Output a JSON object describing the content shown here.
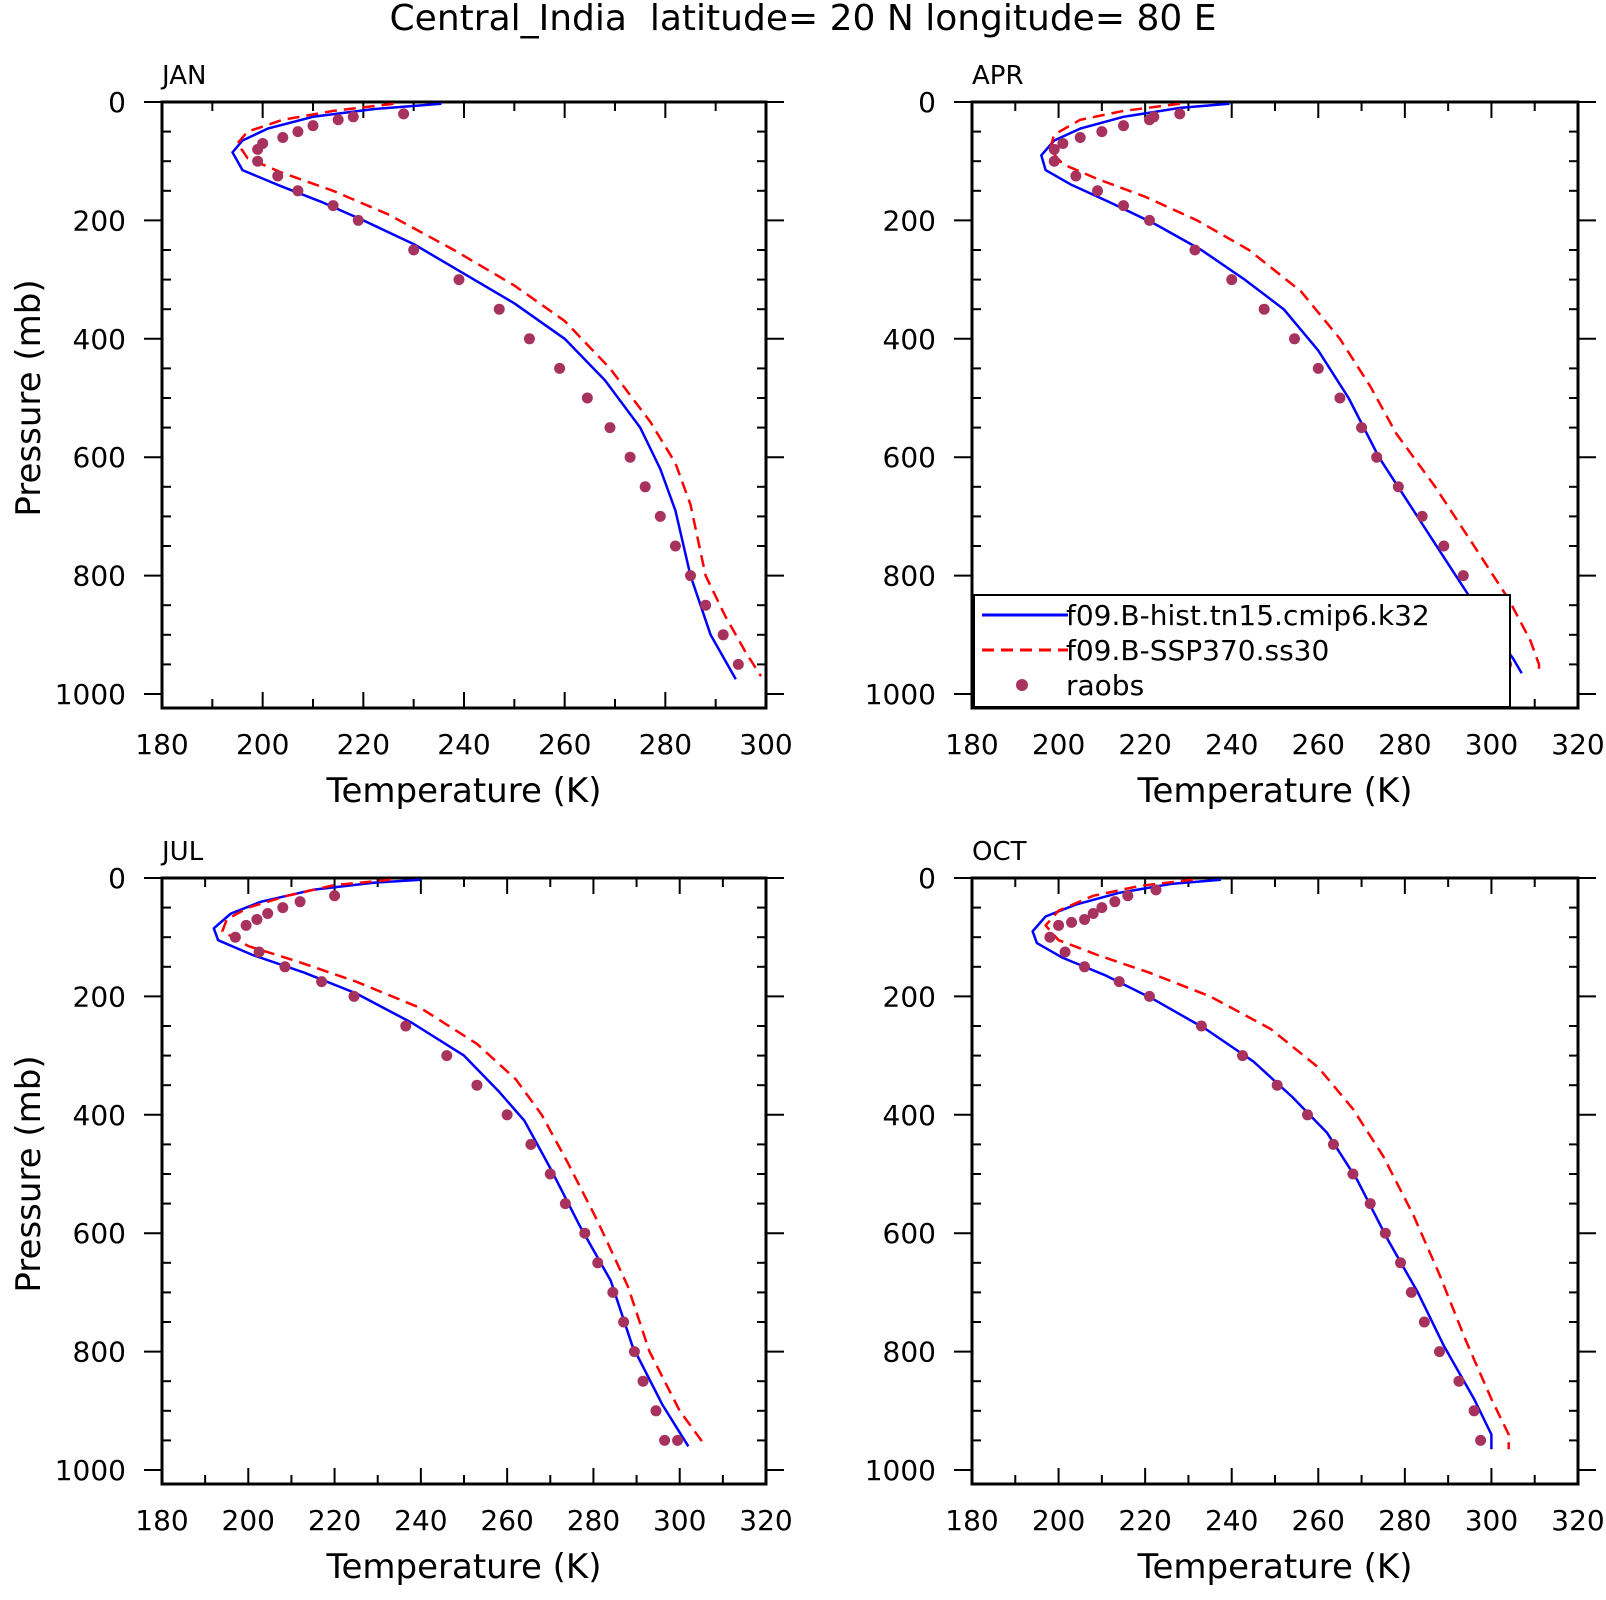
{
  "title": "Central_India  latitude= 20 N longitude= 80 E",
  "legend": {
    "entries": [
      {
        "label": "f09.B-hist.tn15.cmip6.k32",
        "color": "#0000ff",
        "style": "solid"
      },
      {
        "label": "f09.B-SSP370.ss30",
        "color": "#ff0000",
        "style": "dashed"
      },
      {
        "label": "raobs",
        "color": "#a8325e",
        "style": "dot"
      }
    ]
  },
  "chart_data": [
    {
      "type": "line",
      "title": "JAN",
      "xlabel": "Temperature (K)",
      "ylabel": "Pressure (mb)",
      "xlim": [
        180,
        300
      ],
      "ylim": [
        1000,
        0
      ],
      "xticks": [
        "180",
        "200",
        "220",
        "240",
        "260",
        "280",
        "300"
      ],
      "yticks": [
        "0",
        "200",
        "400",
        "600",
        "800",
        "1000"
      ],
      "series": [
        {
          "name": "f09.B-hist.tn15.cmip6.k32",
          "x": [
            235.5,
            222,
            210,
            201,
            196,
            194,
            196,
            203,
            212,
            220,
            230,
            240,
            250,
            260,
            268,
            275,
            279,
            282,
            285,
            289,
            294
          ],
          "y": [
            3,
            12,
            25,
            45,
            65,
            85,
            115,
            140,
            170,
            200,
            240,
            290,
            340,
            400,
            470,
            550,
            620,
            690,
            800,
            900,
            975
          ]
        },
        {
          "name": "f09.B-SSP370.ss30",
          "x": [
            226,
            214,
            204,
            197,
            195,
            197,
            204,
            214,
            225,
            238,
            250,
            260,
            269,
            277,
            282,
            285,
            288,
            292,
            296,
            299
          ],
          "y": [
            3,
            15,
            30,
            50,
            70,
            95,
            120,
            150,
            190,
            250,
            310,
            370,
            450,
            540,
            610,
            680,
            800,
            870,
            930,
            970
          ]
        }
      ],
      "raobs": {
        "name": "raobs",
        "x": [
          228,
          218,
          215,
          210,
          207,
          204,
          200,
          199,
          199,
          203,
          207,
          214,
          219,
          230,
          239,
          247,
          253,
          259,
          264.5,
          269,
          273,
          276,
          279,
          282,
          285,
          288,
          291.5,
          294.5
        ],
        "y": [
          20,
          25,
          30,
          40,
          50,
          60,
          70,
          80,
          100,
          125,
          150,
          175,
          200,
          250,
          300,
          350,
          400,
          450,
          500,
          550,
          600,
          650,
          700,
          750,
          800,
          850,
          900,
          950
        ]
      }
    },
    {
      "type": "line",
      "title": "APR",
      "xlabel": "Temperature (K)",
      "ylabel": "",
      "xlim": [
        180,
        320
      ],
      "ylim": [
        1000,
        0
      ],
      "xticks": [
        "180",
        "200",
        "220",
        "240",
        "260",
        "280",
        "300",
        "320"
      ],
      "yticks": [
        "0",
        "200",
        "400",
        "600",
        "800",
        "1000"
      ],
      "series": [
        {
          "name": "f09.B-hist.tn15.cmip6.k32",
          "x": [
            239.5,
            228,
            215,
            205,
            199,
            196,
            197,
            203,
            212,
            222,
            233,
            243,
            252,
            260,
            267,
            274,
            282,
            290,
            298,
            305,
            307
          ],
          "y": [
            3,
            10,
            25,
            45,
            65,
            90,
            115,
            140,
            170,
            205,
            250,
            300,
            350,
            420,
            500,
            600,
            690,
            780,
            870,
            940,
            965
          ]
        },
        {
          "name": "f09.B-SSP370.ss30",
          "x": [
            228,
            215,
            205,
            199,
            198,
            201,
            209,
            220,
            232,
            244,
            256,
            265,
            272,
            278,
            287,
            296,
            304,
            309,
            311,
            311
          ],
          "y": [
            3,
            15,
            30,
            55,
            80,
            105,
            130,
            160,
            200,
            250,
            320,
            400,
            480,
            560,
            650,
            750,
            840,
            910,
            950,
            965
          ]
        }
      ],
      "raobs": {
        "name": "raobs",
        "x": [
          228,
          222,
          221,
          215,
          210,
          205,
          201,
          199,
          199,
          204,
          209,
          215,
          221,
          231.5,
          240,
          247.5,
          254.5,
          260,
          265,
          270,
          273.5,
          278.5,
          284,
          289,
          293.5,
          298.5,
          302.5,
          303.5
        ],
        "y": [
          20,
          25,
          30,
          40,
          50,
          60,
          70,
          80,
          100,
          125,
          150,
          175,
          200,
          250,
          300,
          350,
          400,
          450,
          500,
          550,
          600,
          650,
          700,
          750,
          800,
          850,
          900,
          950
        ]
      }
    },
    {
      "type": "line",
      "title": "JUL",
      "xlabel": "Temperature (K)",
      "ylabel": "Pressure (mb)",
      "xlim": [
        180,
        320
      ],
      "ylim": [
        1000,
        0
      ],
      "xticks": [
        "180",
        "200",
        "220",
        "240",
        "260",
        "280",
        "300",
        "320"
      ],
      "yticks": [
        "0",
        "200",
        "400",
        "600",
        "800",
        "1000"
      ],
      "series": [
        {
          "name": "f09.B-hist.tn15.cmip6.k32",
          "x": [
            240,
            229,
            215,
            203,
            196,
            192,
            193,
            201,
            213,
            225,
            238,
            250,
            258,
            264,
            270,
            277,
            284,
            289,
            296,
            302
          ],
          "y": [
            3,
            8,
            20,
            40,
            60,
            85,
            105,
            130,
            160,
            195,
            245,
            300,
            360,
            410,
            490,
            590,
            680,
            790,
            890,
            960
          ]
        },
        {
          "name": "f09.B-SSP370.ss30",
          "x": [
            233,
            220,
            209,
            200,
            195,
            194,
            200,
            211,
            225,
            240,
            253,
            262,
            268,
            274,
            281,
            288,
            293,
            300,
            306
          ],
          "y": [
            3,
            12,
            30,
            50,
            70,
            90,
            115,
            140,
            175,
            220,
            280,
            340,
            400,
            480,
            580,
            690,
            800,
            900,
            960
          ]
        }
      ],
      "raobs": {
        "name": "raobs",
        "x": [
          220,
          212,
          208,
          204.5,
          202,
          199.5,
          197,
          202.5,
          208.5,
          217,
          224.5,
          236.5,
          246,
          253,
          260,
          265.5,
          270,
          273.5,
          278,
          281,
          284.5,
          287,
          289.5,
          291.5,
          294.5,
          296.5,
          299.5
        ],
        "y": [
          30,
          40,
          50,
          60,
          70,
          80,
          100,
          125,
          150,
          175,
          200,
          250,
          300,
          350,
          400,
          450,
          500,
          550,
          600,
          650,
          700,
          750,
          800,
          850,
          900,
          950,
          950
        ]
      }
    },
    {
      "type": "line",
      "title": "OCT",
      "xlabel": "Temperature (K)",
      "ylabel": "",
      "xlim": [
        180,
        320
      ],
      "ylim": [
        1000,
        0
      ],
      "xticks": [
        "180",
        "200",
        "220",
        "240",
        "260",
        "280",
        "300",
        "320"
      ],
      "yticks": [
        "0",
        "200",
        "400",
        "600",
        "800",
        "1000"
      ],
      "series": [
        {
          "name": "f09.B-hist.tn15.cmip6.k32",
          "x": [
            237.5,
            226,
            214,
            204,
            197,
            194,
            195,
            201,
            211,
            222,
            234,
            245,
            254,
            262,
            269,
            276,
            283,
            289,
            296,
            300,
            300
          ],
          "y": [
            3,
            10,
            25,
            45,
            65,
            90,
            110,
            135,
            165,
            205,
            255,
            310,
            370,
            430,
            510,
            610,
            700,
            790,
            880,
            940,
            965
          ]
        },
        {
          "name": "f09.B-SSP370.ss30",
          "x": [
            231,
            219,
            208,
            200,
            197,
            200,
            209,
            221,
            235,
            249,
            260,
            268,
            275,
            282,
            288,
            294,
            300,
            304,
            304
          ],
          "y": [
            3,
            13,
            30,
            55,
            80,
            105,
            130,
            160,
            200,
            255,
            320,
            390,
            470,
            570,
            670,
            780,
            880,
            940,
            965
          ]
        }
      ],
      "raobs": {
        "name": "raobs",
        "x": [
          222.5,
          216,
          213,
          210,
          208,
          206,
          203,
          200,
          198,
          201.5,
          206,
          214,
          221,
          233,
          242.5,
          250.5,
          257.5,
          263.5,
          268,
          272,
          275.5,
          279,
          281.5,
          284.5,
          288,
          292.5,
          296,
          297.5
        ],
        "y": [
          20,
          30,
          40,
          50,
          60,
          70,
          75,
          80,
          100,
          125,
          150,
          175,
          200,
          250,
          300,
          350,
          400,
          450,
          500,
          550,
          600,
          650,
          700,
          750,
          800,
          850,
          900,
          950
        ]
      }
    }
  ]
}
